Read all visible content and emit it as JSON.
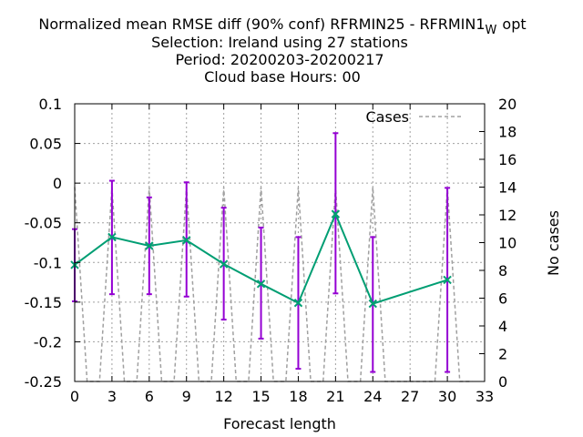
{
  "chart_data": {
    "type": "line",
    "title_lines": [
      "Normalized mean RMSE diff (90% conf) RFRMIN25 - RFRMIN1",
      "Selection: Ireland using    27 stations",
      "Period: 20200203-20200217",
      "Cloud base   Hours:  00"
    ],
    "title_subscript": "W",
    "title_suffix": "opt",
    "xlabel": "Forecast length",
    "ylabel": "",
    "y2label": "No cases",
    "xlim": [
      0,
      33
    ],
    "ylim": [
      -0.25,
      0.1
    ],
    "y2lim": [
      0,
      20
    ],
    "x_ticks": [
      "0",
      "3",
      "6",
      "9",
      "12",
      "15",
      "18",
      "21",
      "24",
      "27",
      "30",
      "33"
    ],
    "y_ticks": [
      "0.1",
      "0.05",
      "0",
      "-0.05",
      "-0.1",
      "-0.15",
      "-0.2",
      "-0.25"
    ],
    "y2_ticks": [
      "20",
      "18",
      "16",
      "14",
      "12",
      "10",
      "8",
      "6",
      "4",
      "2",
      "0"
    ],
    "grid": true,
    "legend_position": "top-right",
    "colors": {
      "diff": "#009e73",
      "errorbar": "#9400d3",
      "cases": "#a0a0a0"
    },
    "series": [
      {
        "x": [
          0,
          3,
          6,
          9,
          12,
          15,
          18,
          21,
          24,
          30
        ],
        "values": [
          -0.103,
          -0.068,
          -0.079,
          -0.072,
          -0.102,
          -0.127,
          -0.151,
          -0.039,
          -0.152,
          -0.122
        ],
        "lower": [
          -0.149,
          -0.14,
          -0.14,
          -0.143,
          -0.172,
          -0.196,
          -0.234,
          -0.139,
          -0.238,
          -0.238
        ],
        "upper": [
          -0.058,
          0.003,
          -0.018,
          0.001,
          -0.031,
          -0.056,
          -0.068,
          0.063,
          -0.068,
          -0.006
        ]
      },
      {
        "name": "Cases",
        "x": [
          0,
          1,
          2,
          3,
          4,
          5,
          6,
          7,
          8,
          9,
          10,
          11,
          12,
          13,
          14,
          15,
          16,
          17,
          18,
          19,
          20,
          21,
          22,
          23,
          24,
          25,
          26,
          27,
          28,
          29,
          30,
          31,
          32
        ],
        "values": [
          14,
          0,
          0,
          14,
          0,
          0,
          14,
          0,
          0,
          14,
          0,
          0,
          14,
          0,
          0,
          14,
          0,
          0,
          14,
          0,
          0,
          14,
          0,
          0,
          14,
          0,
          0,
          0,
          0,
          0,
          14,
          0,
          0
        ]
      }
    ]
  }
}
